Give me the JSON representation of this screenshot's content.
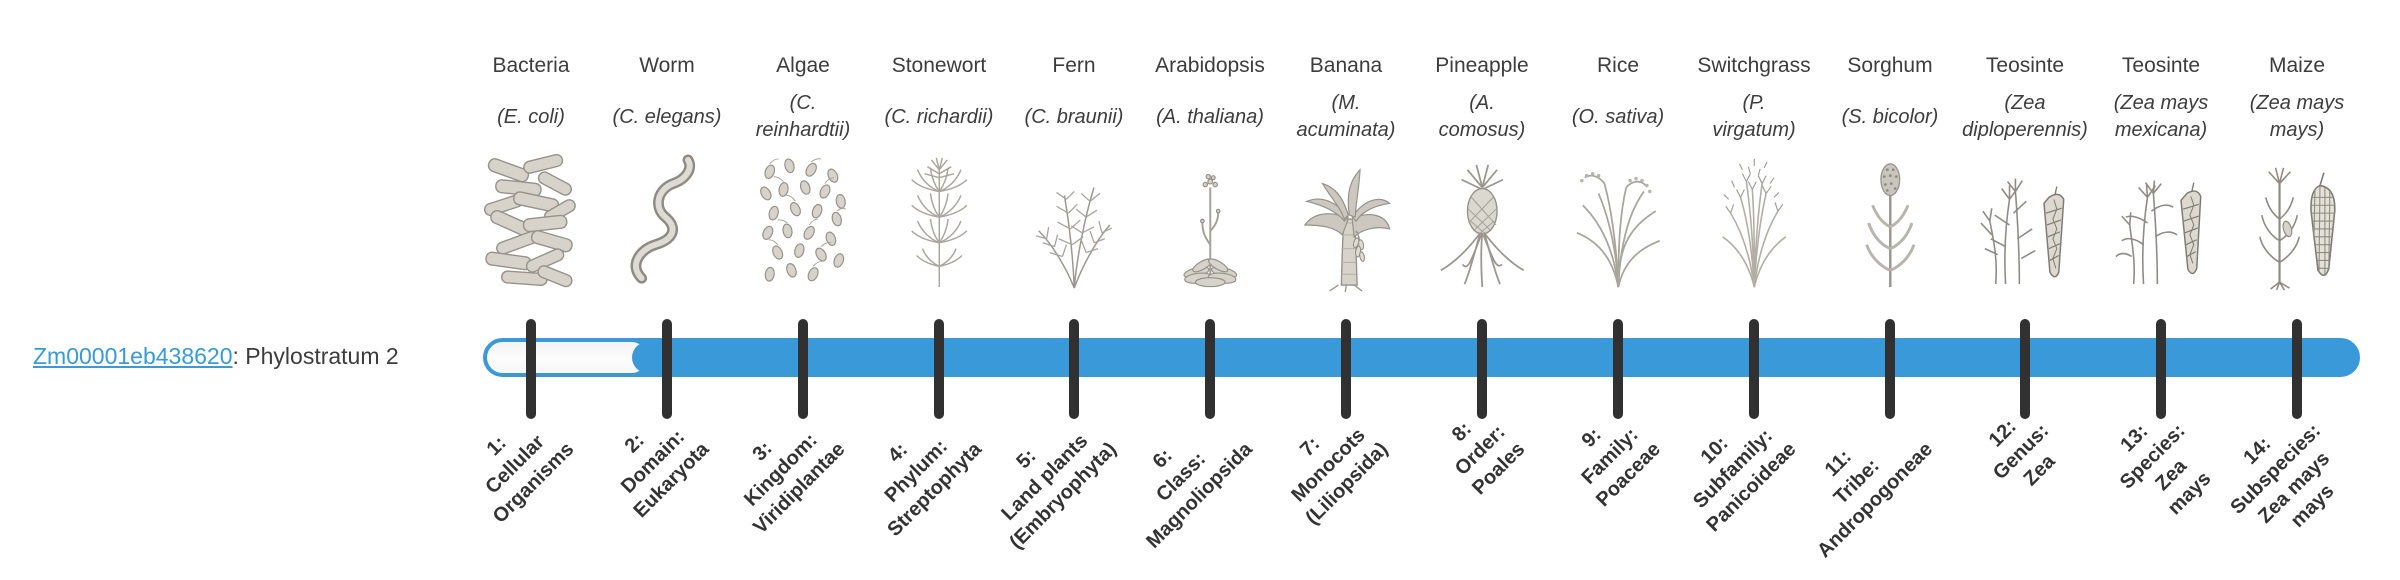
{
  "gene": {
    "id": "Zm00001eb438620",
    "label_suffix": ": Phylostratum 2",
    "phylostratum": 2
  },
  "bar": {
    "color": "#3a99d8",
    "unfilled_strata": 1,
    "filled_from_stratum": 2,
    "total_strata": 14
  },
  "tick_color": "#313131",
  "organisms": [
    {
      "name": "Bacteria",
      "species": "(E. coli)",
      "icon": "bacteria",
      "stratum_label": "1:\nCellular\nOrganisms"
    },
    {
      "name": "Worm",
      "species": "(C. elegans)",
      "icon": "worm",
      "stratum_label": "2:\nDomain:\nEukaryota"
    },
    {
      "name": "Algae",
      "species": "(C.\nreinhardtii)",
      "icon": "algae",
      "stratum_label": "3:\nKingdom:\nViridiplantae"
    },
    {
      "name": "Stonewort",
      "species": "(C. richardii)",
      "icon": "stonewort",
      "stratum_label": "4:\nPhylum:\nStreptophyta"
    },
    {
      "name": "Fern",
      "species": "(C. braunii)",
      "icon": "fern",
      "stratum_label": "5:\nLand plants\n(Embryophyta)"
    },
    {
      "name": "Arabidopsis",
      "species": "(A. thaliana)",
      "icon": "arabidopsis",
      "stratum_label": "6:\nClass:\nMagnoliopsida"
    },
    {
      "name": "Banana",
      "species": "(M.\nacuminata)",
      "icon": "banana",
      "stratum_label": "7:\nMonocots\n(Liliopsida)"
    },
    {
      "name": "Pineapple",
      "species": "(A.\ncomosus)",
      "icon": "pineapple",
      "stratum_label": "8:\nOrder:\nPoales"
    },
    {
      "name": "Rice",
      "species": "(O. sativa)",
      "icon": "rice",
      "stratum_label": "9:\nFamily:\nPoaceae"
    },
    {
      "name": "Switchgrass",
      "species": "(P.\nvirgatum)",
      "icon": "switchgrass",
      "stratum_label": "10:\nSubfamily:\nPanicoideae"
    },
    {
      "name": "Sorghum",
      "species": "(S. bicolor)",
      "icon": "sorghum",
      "stratum_label": "11:\nTribe:\nAndropogoneae"
    },
    {
      "name": "Teosinte",
      "species": "(Zea\ndiploperennis)",
      "icon": "teosinte-diploperennis",
      "stratum_label": "12:\nGenus:\nZea"
    },
    {
      "name": "Teosinte",
      "species": "(Zea mays\nmexicana)",
      "icon": "teosinte-mexicana",
      "stratum_label": "13:\nSpecies:\nZea\nmays"
    },
    {
      "name": "Maize",
      "species": "(Zea mays\nmays)",
      "icon": "maize",
      "stratum_label": "14:\nSubspecies:\nZea mays\nmays"
    }
  ]
}
